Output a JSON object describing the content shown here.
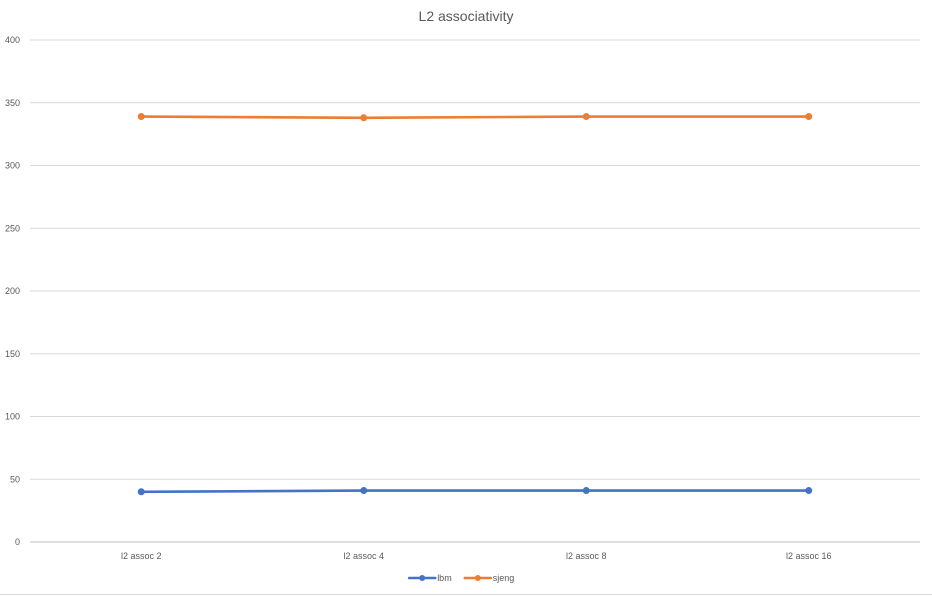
{
  "chart_data": {
    "type": "line",
    "title": "L2 associativity",
    "xlabel": "",
    "ylabel": "",
    "categories": [
      "l2 assoc 2",
      "l2 assoc 4",
      "l2 assoc 8",
      "l2 assoc 16"
    ],
    "ylim": [
      0,
      400
    ],
    "yticks": [
      0,
      50,
      100,
      150,
      200,
      250,
      300,
      350,
      400
    ],
    "grid": true,
    "legend": "bottom",
    "series": [
      {
        "name": "lbm",
        "color": "#4472C4",
        "values": [
          40,
          41,
          41,
          41
        ]
      },
      {
        "name": "sjeng",
        "color": "#ED7D31",
        "values": [
          339,
          338,
          339,
          339
        ]
      }
    ]
  }
}
